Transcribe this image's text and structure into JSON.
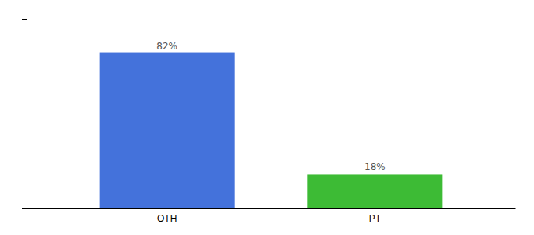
{
  "chart_data": {
    "type": "bar",
    "categories": [
      "OTH",
      "PT"
    ],
    "values": [
      82,
      18
    ],
    "value_labels": [
      "82%",
      "18%"
    ],
    "colors": [
      "#4472db",
      "#3dbb35"
    ],
    "ylim": [
      0,
      100
    ],
    "data_labels": true,
    "tick_labels": "x",
    "grid": false
  }
}
